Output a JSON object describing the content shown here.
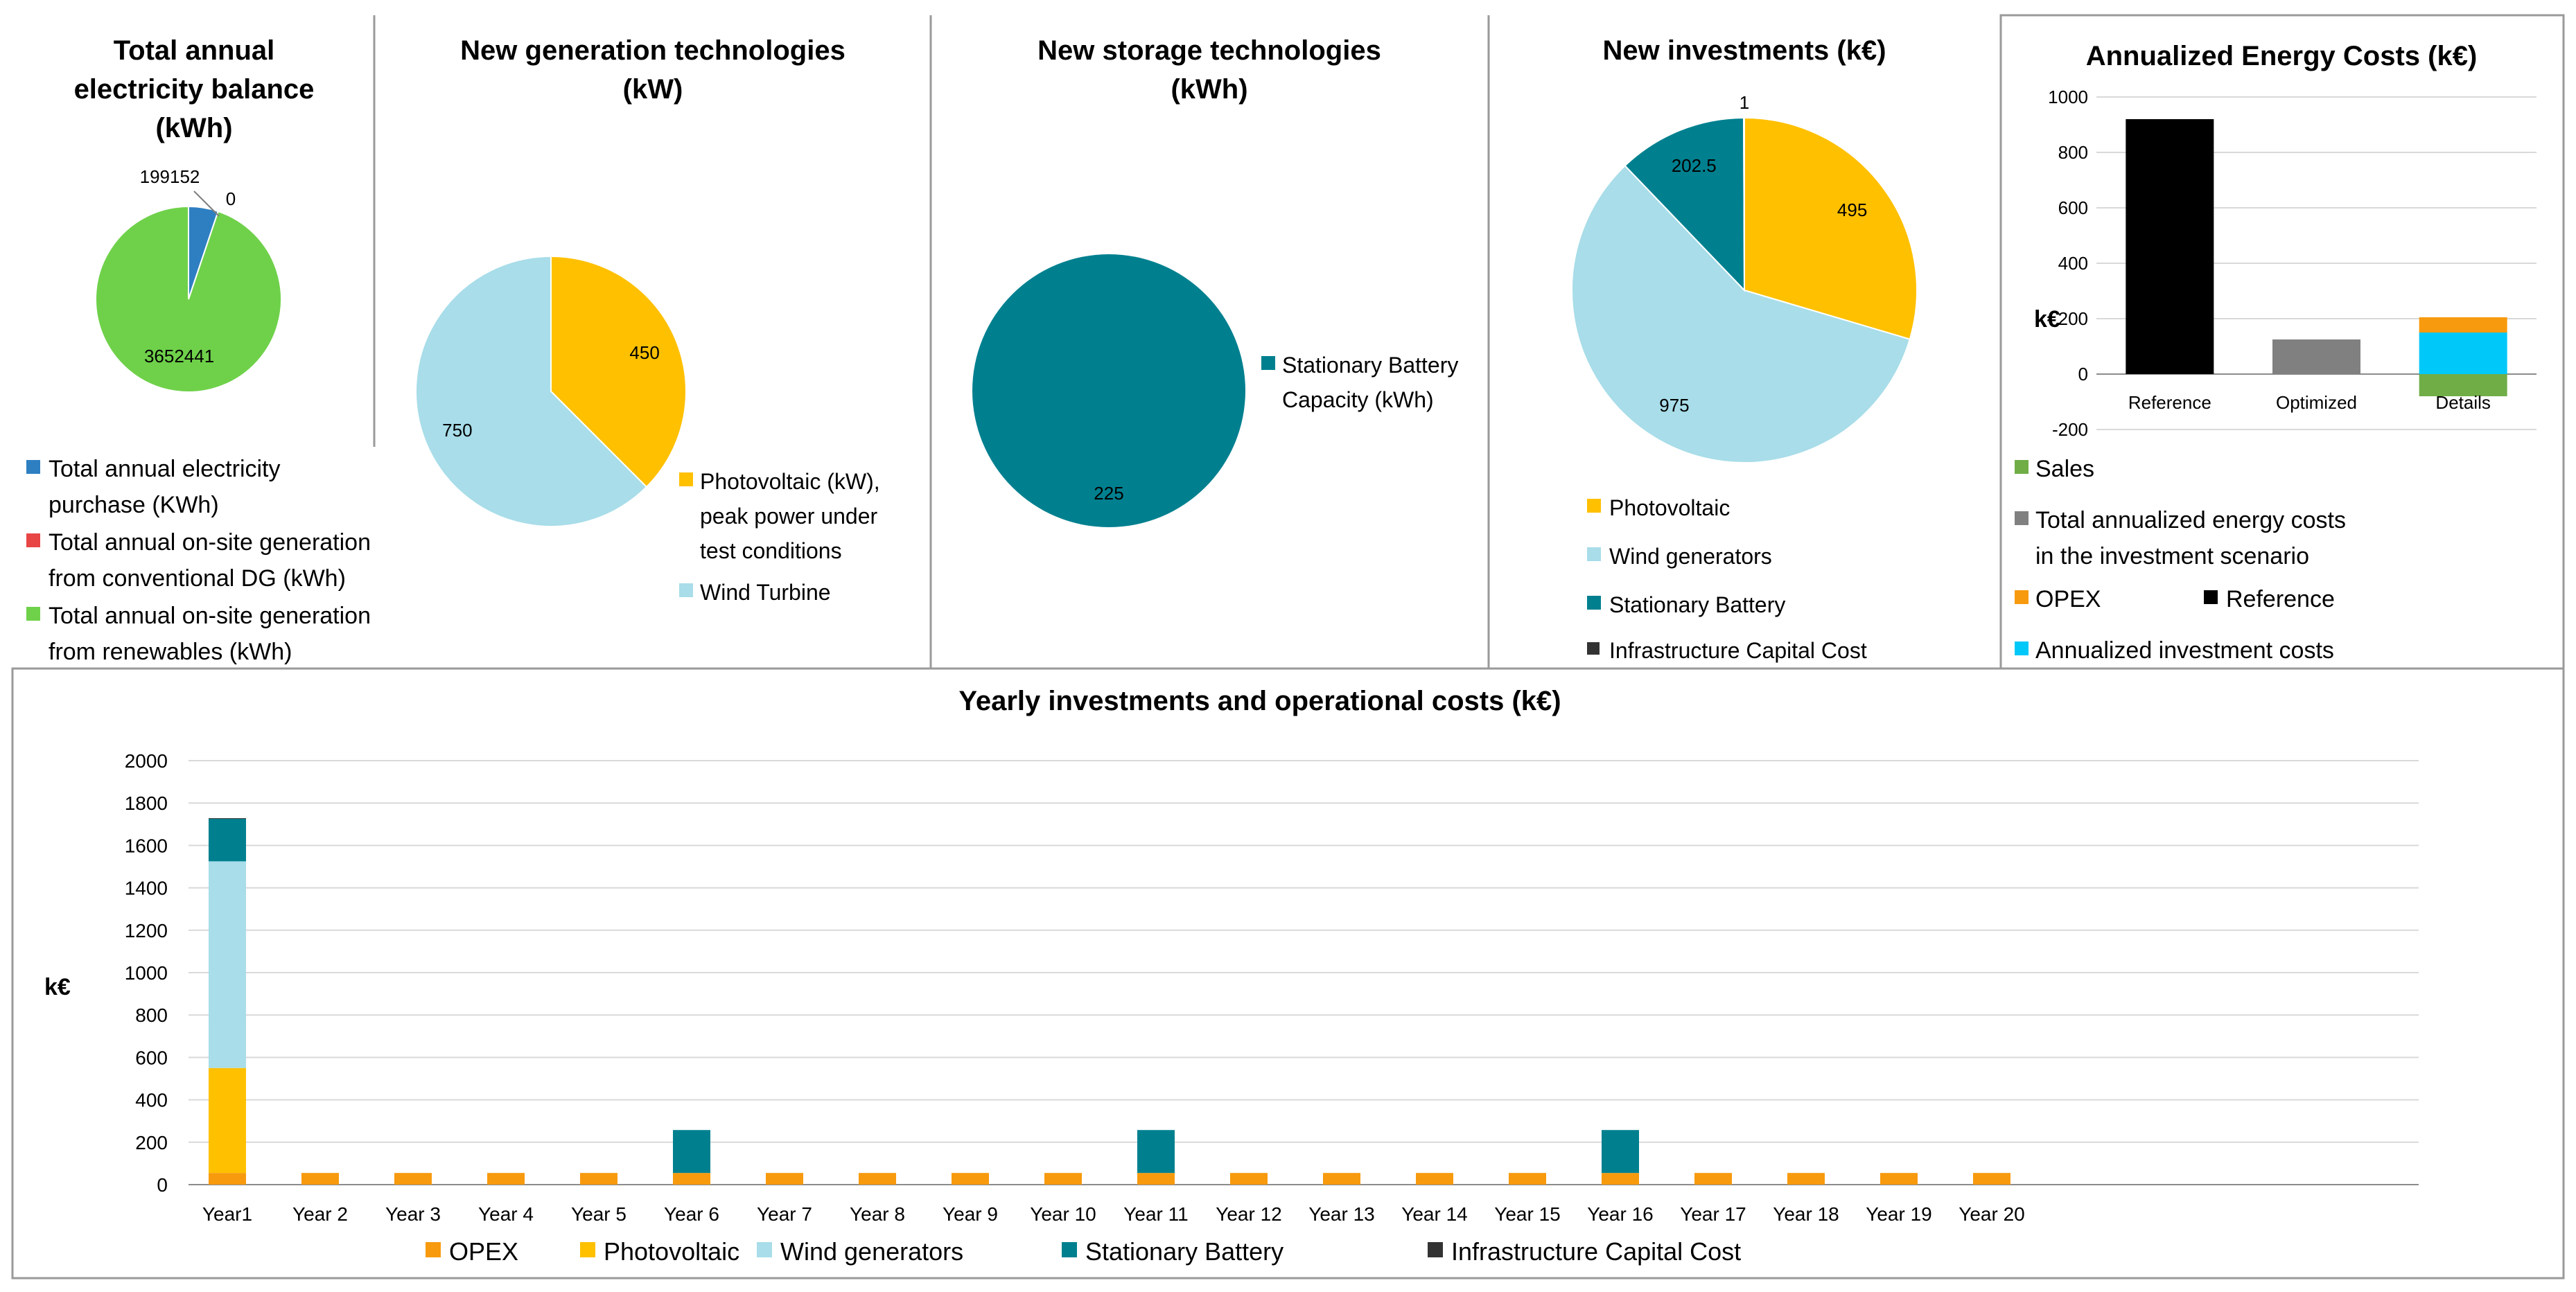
{
  "colors": {
    "opex": "#F79A0E",
    "photovoltaic": "#FFC000",
    "wind": "#A8DDE9",
    "battery": "#00808F",
    "infrastructure": "#333333",
    "purchase": "#2E7FC2",
    "conventional": "#E84545",
    "renewables": "#6FD14A",
    "sales": "#70AD47",
    "total_annualized": "#808080",
    "reference": "#000000",
    "annualized_investment": "#00C8F8",
    "grid": "#D9D9D9",
    "frame": "#9A9A9A"
  },
  "panels": {
    "balance": {
      "title_lines": [
        "Total annual",
        "electricity balance",
        "(kWh)"
      ],
      "legend": [
        {
          "lines": [
            "Total annual electricity",
            "purchase (KWh)"
          ],
          "color_key": "purchase"
        },
        {
          "lines": [
            "Total annual on-site generation",
            "from conventional DG (kWh)"
          ],
          "color_key": "conventional"
        },
        {
          "lines": [
            "Total annual on-site generation",
            "from renewables (kWh)"
          ],
          "color_key": "renewables"
        }
      ]
    },
    "generation": {
      "title_lines": [
        "New generation technologies",
        "(kW)"
      ],
      "legend": [
        {
          "lines": [
            "Photovoltaic (kW),",
            "peak power under",
            "test conditions"
          ],
          "color_key": "photovoltaic"
        },
        {
          "lines": [
            "Wind Turbine"
          ],
          "color_key": "wind"
        }
      ]
    },
    "storage": {
      "title_lines": [
        "New storage technologies",
        "(kWh)"
      ],
      "legend": [
        {
          "lines": [
            "Stationary Battery",
            "Capacity (kWh)"
          ],
          "color_key": "battery"
        }
      ]
    },
    "investments": {
      "title_lines": [
        "New investments (k€)"
      ],
      "legend": [
        {
          "lines": [
            "Photovoltaic"
          ],
          "color_key": "photovoltaic"
        },
        {
          "lines": [
            "Wind generators"
          ],
          "color_key": "wind"
        },
        {
          "lines": [
            "Stationary Battery"
          ],
          "color_key": "battery"
        },
        {
          "lines": [
            "Infrastructure Capital Cost"
          ],
          "color_key": "infrastructure"
        }
      ]
    },
    "annualized": {
      "title_lines": [
        "Annualized Energy Costs (k€)"
      ],
      "legend": [
        {
          "label": "Sales",
          "color_key": "sales"
        },
        {
          "label": "Total annualized energy costs",
          "label2": "in the investment scenario",
          "color_key": "total_annualized"
        },
        {
          "label": "OPEX",
          "color_key": "opex"
        },
        {
          "label": "Reference",
          "color_key": "reference"
        },
        {
          "label": "Annualized investment costs",
          "color_key": "annualized_investment"
        }
      ]
    },
    "yearly": {
      "title_lines": [
        "Yearly investments and operational costs (k€)"
      ],
      "legend": [
        {
          "label": "OPEX",
          "color_key": "opex"
        },
        {
          "label": "Photovoltaic",
          "color_key": "photovoltaic"
        },
        {
          "label": "Wind generators",
          "color_key": "wind"
        },
        {
          "label": "Stationary Battery",
          "color_key": "battery"
        },
        {
          "label": "Infrastructure Capital Cost",
          "color_key": "infrastructure"
        }
      ]
    }
  },
  "chart_data": [
    {
      "id": "balance",
      "type": "pie",
      "title": "Total annual electricity balance (kWh)",
      "slices": [
        {
          "label": "Total annual electricity purchase (KWh)",
          "value": 199152,
          "data_label": "199152",
          "color_key": "purchase"
        },
        {
          "label": "Total annual on-site generation from conventional DG (kWh)",
          "value": 0,
          "data_label": "0",
          "color_key": "conventional"
        },
        {
          "label": "Total annual on-site generation from renewables (kWh)",
          "value": 3652441,
          "data_label": "3652441",
          "color_key": "renewables"
        }
      ]
    },
    {
      "id": "generation",
      "type": "pie",
      "title": "New generation technologies (kW)",
      "slices": [
        {
          "label": "Photovoltaic (kW), peak power under test conditions",
          "value": 450,
          "data_label": "450",
          "color_key": "photovoltaic"
        },
        {
          "label": "Wind Turbine",
          "value": 750,
          "data_label": "750",
          "color_key": "wind"
        }
      ]
    },
    {
      "id": "storage",
      "type": "pie",
      "title": "New storage technologies (kWh)",
      "slices": [
        {
          "label": "Stationary Battery Capacity (kWh)",
          "value": 225,
          "data_label": "225",
          "color_key": "battery"
        }
      ]
    },
    {
      "id": "investments",
      "type": "pie",
      "title": "New investments (k€)",
      "slices": [
        {
          "label": "Photovoltaic",
          "value": 495,
          "data_label": "495",
          "color_key": "photovoltaic"
        },
        {
          "label": "Wind generators",
          "value": 975,
          "data_label": "975",
          "color_key": "wind"
        },
        {
          "label": "Stationary Battery",
          "value": 202.5,
          "data_label": "202.5",
          "color_key": "battery"
        },
        {
          "label": "Infrastructure Capital Cost",
          "value": 1,
          "data_label": "1",
          "color_key": "infrastructure"
        }
      ]
    },
    {
      "id": "annualized",
      "type": "bar",
      "title": "Annualized Energy Costs (k€)",
      "ylabel": "k€",
      "ylim": [
        -200,
        1000
      ],
      "yticks": [
        -200,
        0,
        200,
        400,
        600,
        800,
        1000
      ],
      "categories": [
        "Reference",
        "Optimized",
        "Details"
      ],
      "series": [
        {
          "name": "Reference",
          "color_key": "reference",
          "values": [
            920,
            0,
            0
          ]
        },
        {
          "name": "Total annualized energy costs in the investment scenario",
          "color_key": "total_annualized",
          "values": [
            0,
            125,
            0
          ]
        },
        {
          "name": "Annualized investment costs",
          "color_key": "annualized_investment",
          "values": [
            0,
            0,
            150
          ]
        },
        {
          "name": "OPEX",
          "color_key": "opex",
          "values": [
            0,
            0,
            55
          ]
        },
        {
          "name": "Sales",
          "color_key": "sales",
          "values": [
            0,
            0,
            -80
          ]
        }
      ]
    },
    {
      "id": "yearly",
      "type": "bar",
      "stacked": true,
      "title": "Yearly investments and operational costs (k€)",
      "ylabel": "k€",
      "ylim": [
        0,
        2000
      ],
      "yticks": [
        0,
        200,
        400,
        600,
        800,
        1000,
        1200,
        1400,
        1600,
        1800,
        2000
      ],
      "categories": [
        "Year1",
        "Year 2",
        "Year 3",
        "Year 4",
        "Year 5",
        "Year 6",
        "Year 7",
        "Year 8",
        "Year 9",
        "Year 10",
        "Year 11",
        "Year 12",
        "Year 13",
        "Year 14",
        "Year 15",
        "Year 16",
        "Year 17",
        "Year 18",
        "Year 19",
        "Year 20"
      ],
      "series": [
        {
          "name": "OPEX",
          "color_key": "opex",
          "values": [
            55,
            55,
            55,
            55,
            55,
            55,
            55,
            55,
            55,
            55,
            55,
            55,
            55,
            55,
            55,
            55,
            55,
            55,
            55,
            55
          ]
        },
        {
          "name": "Photovoltaic",
          "color_key": "photovoltaic",
          "values": [
            495,
            0,
            0,
            0,
            0,
            0,
            0,
            0,
            0,
            0,
            0,
            0,
            0,
            0,
            0,
            0,
            0,
            0,
            0,
            0
          ]
        },
        {
          "name": "Wind generators",
          "color_key": "wind",
          "values": [
            975,
            0,
            0,
            0,
            0,
            0,
            0,
            0,
            0,
            0,
            0,
            0,
            0,
            0,
            0,
            0,
            0,
            0,
            0,
            0
          ]
        },
        {
          "name": "Stationary Battery",
          "color_key": "battery",
          "values": [
            202.5,
            0,
            0,
            0,
            0,
            202.5,
            0,
            0,
            0,
            0,
            202.5,
            0,
            0,
            0,
            0,
            202.5,
            0,
            0,
            0,
            0
          ]
        },
        {
          "name": "Infrastructure Capital Cost",
          "color_key": "infrastructure",
          "values": [
            1,
            0,
            0,
            0,
            0,
            0,
            0,
            0,
            0,
            0,
            0,
            0,
            0,
            0,
            0,
            0,
            0,
            0,
            0,
            0
          ]
        }
      ]
    }
  ]
}
